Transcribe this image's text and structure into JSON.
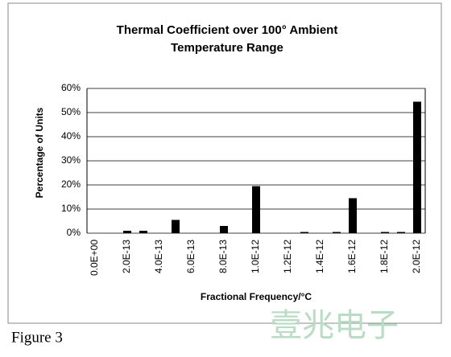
{
  "chart_data": {
    "type": "bar",
    "title": [
      "Thermal Coefficient over 100° Ambient",
      "Temperature Range"
    ],
    "x_label": "Fractional Frequency/°C",
    "y_label": "Percentage of Units",
    "categories": [
      "0.0E+00",
      null,
      "2.0E-13",
      null,
      "4.0E-13",
      null,
      "6.0E-13",
      null,
      "8.0E-13",
      null,
      "1.0E-12",
      null,
      "1.2E-12",
      null,
      "1.4E-12",
      null,
      "1.6E-12",
      null,
      "1.8E-12",
      null,
      "2.0E-12"
    ],
    "values": [
      0,
      0,
      1,
      1,
      0,
      5.5,
      0,
      0,
      3,
      0,
      19.5,
      0,
      0,
      0.5,
      0,
      0.5,
      14.5,
      0,
      0.5,
      0.5,
      54.5
    ],
    "color": "#000000",
    "ylim": [
      0,
      60
    ],
    "yticks": [
      {
        "value": 0,
        "label": "0%"
      },
      {
        "value": 10,
        "label": "10%"
      },
      {
        "value": 20,
        "label": "20%"
      },
      {
        "value": 30,
        "label": "30%"
      },
      {
        "value": 40,
        "label": "40%"
      },
      {
        "value": 50,
        "label": "50%"
      },
      {
        "value": 60,
        "label": "60%"
      }
    ],
    "grid": true
  },
  "caption": "Figure 3",
  "watermark": "壹兆电子"
}
